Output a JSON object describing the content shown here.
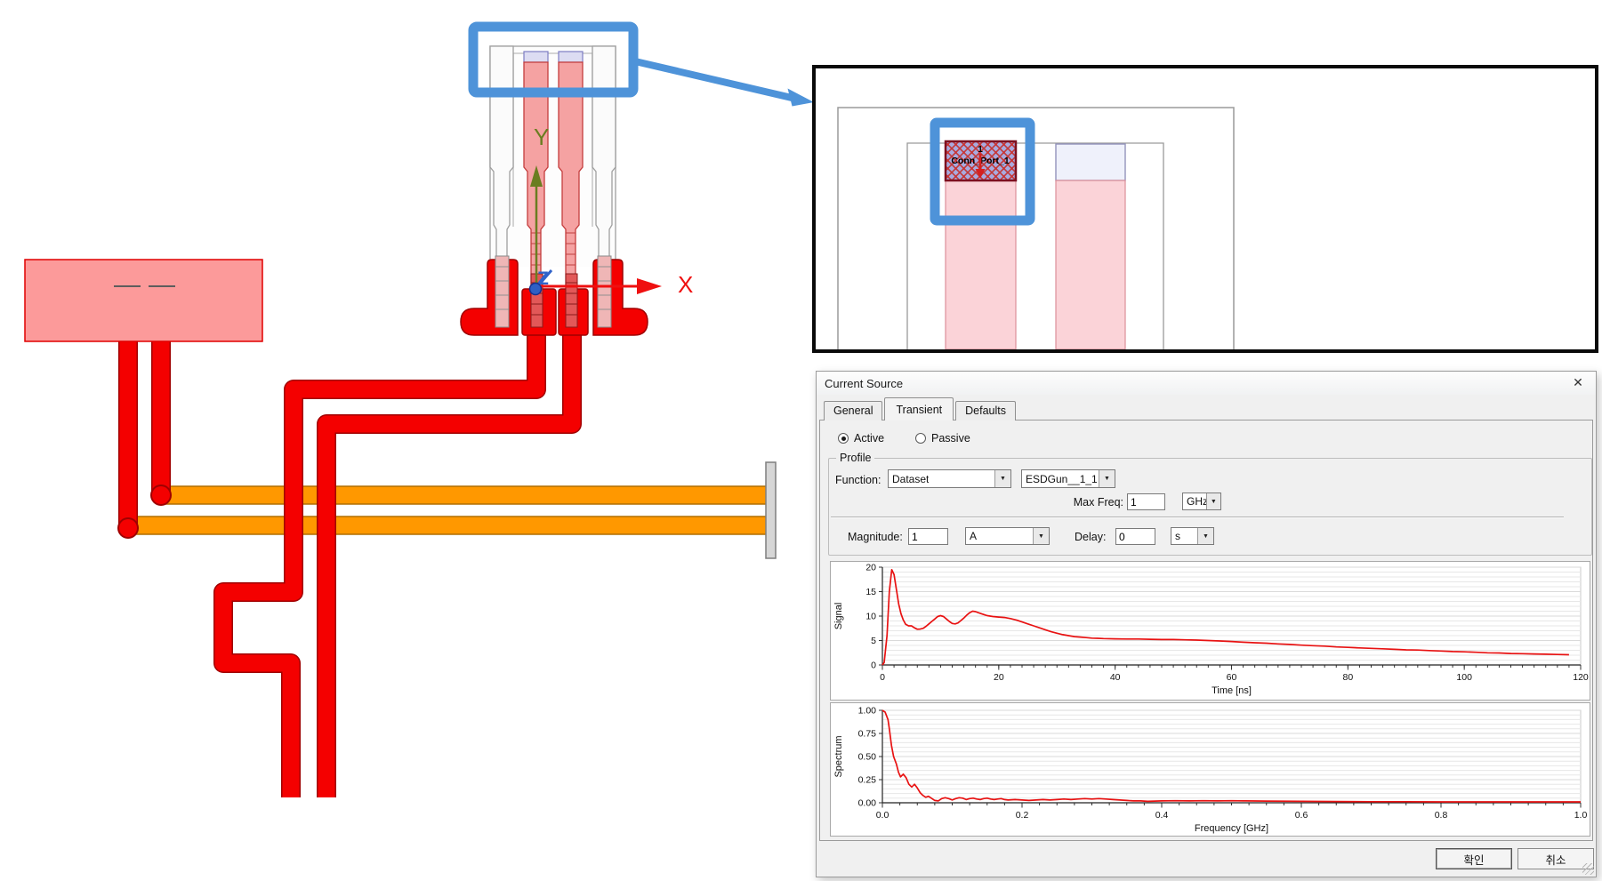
{
  "colors": {
    "accent_blue": "#4e93d9",
    "trace_red": "#f40000",
    "trace_outline": "#a00000",
    "orange_trace": "#ff9800",
    "pink_fill": "#f5a2a2",
    "pink_light": "#fbd3d8",
    "lavender_cap": "#dcdcf2",
    "curve_red": "#e81212"
  },
  "scene": {
    "axis_x_label": "X",
    "axis_y_label": "Y",
    "axis_z_label": "Z"
  },
  "detail_panel": {
    "port_number": "1",
    "port_name": "Conn_Port_1"
  },
  "dialog": {
    "title": "Current Source",
    "close_label": "✕",
    "tabs": [
      {
        "label": "General"
      },
      {
        "label": "Transient"
      },
      {
        "label": "Defaults"
      }
    ],
    "radio": {
      "active_label": "Active",
      "passive_label": "Passive",
      "selected": "Active"
    },
    "profile": {
      "legend": "Profile",
      "function_label": "Function:",
      "function_value": "Dataset",
      "dataset_value": "ESDGun__1_1",
      "max_freq_label": "Max Freq:",
      "max_freq_value": "1",
      "max_freq_unit": "GHz",
      "magnitude_label": "Magnitude:",
      "magnitude_value": "1",
      "magnitude_unit": "A",
      "delay_label": "Delay:",
      "delay_value": "0",
      "delay_unit": "s"
    },
    "buttons": {
      "ok": "확인",
      "cancel": "취소"
    }
  },
  "chart_data": [
    {
      "type": "line",
      "title": "",
      "ylabel": "Signal",
      "xlabel": "Time [ns]",
      "xlim": [
        0,
        120
      ],
      "ylim": [
        0,
        20
      ],
      "xticks": {
        "values": [
          0,
          20,
          40,
          60,
          80,
          100,
          120
        ],
        "labels": [
          "0",
          "20",
          "40",
          "60",
          "80",
          "100",
          "120"
        ]
      },
      "yticks": {
        "values": [
          0,
          5,
          10,
          15,
          20
        ],
        "labels": [
          "0",
          "5",
          "10",
          "15",
          "20"
        ]
      },
      "minor_x_step": 2,
      "minor_y_step": 1,
      "grid": true,
      "legend": "none",
      "line_color": "#e81212",
      "points": [
        [
          0,
          0
        ],
        [
          0.3,
          0.5
        ],
        [
          0.8,
          6
        ],
        [
          1.2,
          15
        ],
        [
          1.6,
          19.5
        ],
        [
          2.0,
          18.5
        ],
        [
          2.4,
          15.5
        ],
        [
          2.8,
          12.5
        ],
        [
          3.2,
          10.5
        ],
        [
          3.6,
          9.2
        ],
        [
          4.0,
          8.3
        ],
        [
          4.5,
          8.0
        ],
        [
          5.0,
          8.0
        ],
        [
          5.5,
          7.6
        ],
        [
          6.0,
          7.3
        ],
        [
          6.5,
          7.35
        ],
        [
          7.0,
          7.5
        ],
        [
          7.5,
          7.9
        ],
        [
          8.0,
          8.4
        ],
        [
          8.5,
          8.9
        ],
        [
          9.0,
          9.4
        ],
        [
          9.5,
          9.9
        ],
        [
          10.0,
          10.1
        ],
        [
          10.5,
          9.9
        ],
        [
          11.0,
          9.4
        ],
        [
          11.5,
          8.9
        ],
        [
          12.0,
          8.5
        ],
        [
          12.5,
          8.4
        ],
        [
          13.0,
          8.6
        ],
        [
          13.5,
          9.1
        ],
        [
          14.0,
          9.6
        ],
        [
          14.5,
          10.2
        ],
        [
          15.0,
          10.7
        ],
        [
          15.5,
          11.0
        ],
        [
          16.0,
          10.9
        ],
        [
          16.5,
          10.7
        ],
        [
          17.0,
          10.5
        ],
        [
          17.5,
          10.3
        ],
        [
          18,
          10.1
        ],
        [
          19,
          9.9
        ],
        [
          20,
          9.8
        ],
        [
          21,
          9.7
        ],
        [
          22,
          9.5
        ],
        [
          23,
          9.2
        ],
        [
          24,
          8.8
        ],
        [
          25,
          8.4
        ],
        [
          26,
          8.0
        ],
        [
          27,
          7.6
        ],
        [
          28,
          7.2
        ],
        [
          29,
          6.8
        ],
        [
          30,
          6.5
        ],
        [
          31,
          6.2
        ],
        [
          32,
          6.0
        ],
        [
          33,
          5.8
        ],
        [
          34,
          5.7
        ],
        [
          35,
          5.6
        ],
        [
          36,
          5.5
        ],
        [
          37,
          5.45
        ],
        [
          38,
          5.4
        ],
        [
          40,
          5.35
        ],
        [
          42,
          5.3
        ],
        [
          44,
          5.3
        ],
        [
          46,
          5.25
        ],
        [
          48,
          5.2
        ],
        [
          50,
          5.2
        ],
        [
          52,
          5.15
        ],
        [
          54,
          5.1
        ],
        [
          56,
          5.0
        ],
        [
          58,
          4.9
        ],
        [
          60,
          4.8
        ],
        [
          62,
          4.65
        ],
        [
          64,
          4.55
        ],
        [
          66,
          4.45
        ],
        [
          68,
          4.3
        ],
        [
          70,
          4.2
        ],
        [
          72,
          4.05
        ],
        [
          74,
          3.95
        ],
        [
          76,
          3.85
        ],
        [
          78,
          3.7
        ],
        [
          80,
          3.6
        ],
        [
          82,
          3.5
        ],
        [
          84,
          3.4
        ],
        [
          86,
          3.3
        ],
        [
          88,
          3.2
        ],
        [
          90,
          3.1
        ],
        [
          92,
          3.05
        ],
        [
          94,
          2.95
        ],
        [
          96,
          2.85
        ],
        [
          98,
          2.75
        ],
        [
          100,
          2.7
        ],
        [
          102,
          2.6
        ],
        [
          104,
          2.5
        ],
        [
          106,
          2.45
        ],
        [
          108,
          2.35
        ],
        [
          110,
          2.3
        ],
        [
          112,
          2.25
        ],
        [
          114,
          2.2
        ],
        [
          116,
          2.15
        ],
        [
          118,
          2.1
        ]
      ]
    },
    {
      "type": "line",
      "title": "",
      "ylabel": "Spectrum",
      "xlabel": "Frequency [GHz]",
      "xlim": [
        0,
        1.0
      ],
      "ylim": [
        0,
        1.0
      ],
      "xticks": {
        "values": [
          0,
          0.2,
          0.4,
          0.6,
          0.8,
          1.0
        ],
        "labels": [
          "0.0",
          "0.2",
          "0.4",
          "0.6",
          "0.8",
          "1.0"
        ]
      },
      "yticks": {
        "values": [
          0,
          0.25,
          0.5,
          0.75,
          1.0
        ],
        "labels": [
          "0.00",
          "0.25",
          "0.50",
          "0.75",
          "1.00"
        ]
      },
      "minor_x_step": 0.025,
      "minor_y_step": 0.05,
      "grid": true,
      "legend": "none",
      "line_color": "#e81212",
      "points": [
        [
          0,
          1.0
        ],
        [
          0.004,
          0.98
        ],
        [
          0.008,
          0.9
        ],
        [
          0.01,
          0.8
        ],
        [
          0.013,
          0.62
        ],
        [
          0.016,
          0.5
        ],
        [
          0.02,
          0.42
        ],
        [
          0.023,
          0.33
        ],
        [
          0.026,
          0.28
        ],
        [
          0.03,
          0.31
        ],
        [
          0.034,
          0.27
        ],
        [
          0.038,
          0.2
        ],
        [
          0.042,
          0.17
        ],
        [
          0.046,
          0.2
        ],
        [
          0.05,
          0.16
        ],
        [
          0.054,
          0.11
        ],
        [
          0.058,
          0.08
        ],
        [
          0.062,
          0.06
        ],
        [
          0.066,
          0.07
        ],
        [
          0.07,
          0.05
        ],
        [
          0.075,
          0.025
        ],
        [
          0.08,
          0.02
        ],
        [
          0.085,
          0.045
        ],
        [
          0.09,
          0.055
        ],
        [
          0.095,
          0.045
        ],
        [
          0.1,
          0.03
        ],
        [
          0.105,
          0.045
        ],
        [
          0.11,
          0.055
        ],
        [
          0.115,
          0.05
        ],
        [
          0.12,
          0.035
        ],
        [
          0.125,
          0.045
        ],
        [
          0.13,
          0.05
        ],
        [
          0.135,
          0.04
        ],
        [
          0.14,
          0.035
        ],
        [
          0.145,
          0.045
        ],
        [
          0.15,
          0.05
        ],
        [
          0.155,
          0.04
        ],
        [
          0.16,
          0.035
        ],
        [
          0.165,
          0.04
        ],
        [
          0.17,
          0.045
        ],
        [
          0.175,
          0.035
        ],
        [
          0.18,
          0.03
        ],
        [
          0.19,
          0.035
        ],
        [
          0.2,
          0.03
        ],
        [
          0.21,
          0.025
        ],
        [
          0.22,
          0.03
        ],
        [
          0.23,
          0.035
        ],
        [
          0.24,
          0.03
        ],
        [
          0.25,
          0.035
        ],
        [
          0.26,
          0.04
        ],
        [
          0.27,
          0.035
        ],
        [
          0.28,
          0.04
        ],
        [
          0.29,
          0.045
        ],
        [
          0.3,
          0.04
        ],
        [
          0.31,
          0.045
        ],
        [
          0.32,
          0.04
        ],
        [
          0.33,
          0.035
        ],
        [
          0.34,
          0.03
        ],
        [
          0.35,
          0.025
        ],
        [
          0.36,
          0.02
        ],
        [
          0.37,
          0.02
        ],
        [
          0.38,
          0.015
        ],
        [
          0.4,
          0.02
        ],
        [
          0.42,
          0.022
        ],
        [
          0.44,
          0.02
        ],
        [
          0.46,
          0.022
        ],
        [
          0.48,
          0.02
        ],
        [
          0.5,
          0.022
        ],
        [
          0.52,
          0.02
        ],
        [
          0.55,
          0.018
        ],
        [
          0.6,
          0.015
        ],
        [
          0.65,
          0.013
        ],
        [
          0.7,
          0.012
        ],
        [
          0.75,
          0.012
        ],
        [
          0.8,
          0.01
        ],
        [
          0.85,
          0.01
        ],
        [
          0.9,
          0.01
        ],
        [
          0.95,
          0.01
        ],
        [
          1.0,
          0.01
        ]
      ]
    }
  ]
}
